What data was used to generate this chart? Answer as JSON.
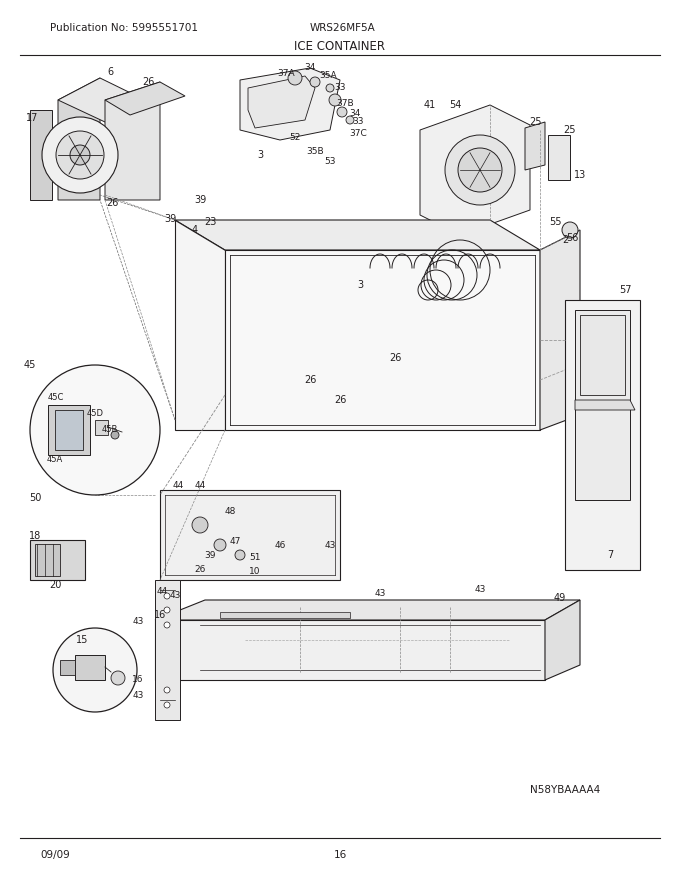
{
  "publication_no": "Publication No: 5995551701",
  "model": "WRS26MF5A",
  "title": "ICE CONTAINER",
  "date": "09/09",
  "page": "16",
  "diagram_id": "N58YBAAAA4",
  "bg_color": "#ffffff",
  "line_color": "#231f20",
  "text_color": "#231f20",
  "fig_width": 6.8,
  "fig_height": 8.8,
  "dpi": 100
}
